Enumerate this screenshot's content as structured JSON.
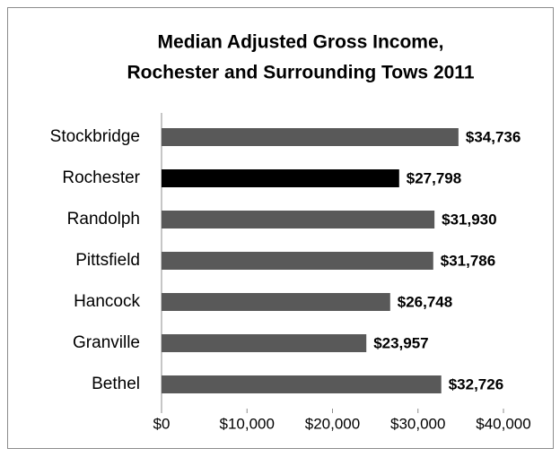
{
  "chart_data": {
    "type": "bar",
    "orientation": "horizontal",
    "title": [
      "Median Adjusted Gross Income,",
      "Rochester and Surrounding Tows 2011"
    ],
    "categories": [
      "Stockbridge",
      "Rochester",
      "Randolph",
      "Pittsfield",
      "Hancock",
      "Granville",
      "Bethel"
    ],
    "values": [
      34736,
      27798,
      31930,
      31786,
      26748,
      23957,
      32726
    ],
    "value_labels": [
      "$34,736",
      "$27,798",
      "$31,930",
      "$31,786",
      "$26,748",
      "$23,957",
      "$32,726"
    ],
    "colors": [
      "#595959",
      "#000000",
      "#595959",
      "#595959",
      "#595959",
      "#595959",
      "#595959"
    ],
    "xlim": [
      0,
      40000
    ],
    "xticks": [
      {
        "value": 0,
        "label": "$0"
      },
      {
        "value": 10000,
        "label": "$10,000"
      },
      {
        "value": 20000,
        "label": "$20,000"
      },
      {
        "value": 30000,
        "label": "$30,000"
      },
      {
        "value": 40000,
        "label": "$40,000"
      }
    ],
    "grid": false
  }
}
